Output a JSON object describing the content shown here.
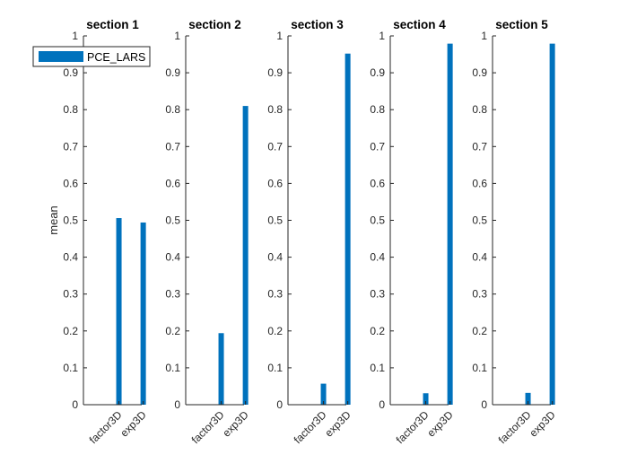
{
  "chart_data": [
    {
      "type": "bar",
      "title": "section 1",
      "ylabel": "mean",
      "categories": [
        "factor3D",
        "exp3D"
      ],
      "series": [
        {
          "name": "PCE_LARS",
          "values": [
            0.506,
            0.494
          ]
        }
      ],
      "ylim": [
        0,
        1
      ],
      "yticks": [
        "0",
        "0.1",
        "0.2",
        "0.3",
        "0.4",
        "0.5",
        "0.6",
        "0.7",
        "0.8",
        "0.9",
        "1"
      ],
      "legend": {
        "placement": "top-left",
        "entries": [
          "PCE_LARS"
        ]
      },
      "grid": false
    },
    {
      "type": "bar",
      "title": "section 2",
      "categories": [
        "factor3D",
        "exp3D"
      ],
      "series": [
        {
          "values": [
            0.194,
            0.81
          ]
        }
      ],
      "ylim": [
        0,
        1
      ],
      "yticks": [
        "0",
        "0.1",
        "0.2",
        "0.3",
        "0.4",
        "0.5",
        "0.6",
        "0.7",
        "0.8",
        "0.9",
        "1"
      ],
      "grid": false
    },
    {
      "type": "bar",
      "title": "section 3",
      "categories": [
        "factor3D",
        "exp3D"
      ],
      "series": [
        {
          "values": [
            0.057,
            0.952
          ]
        }
      ],
      "ylim": [
        0,
        1
      ],
      "yticks": [
        "0",
        "0.1",
        "0.2",
        "0.3",
        "0.4",
        "0.5",
        "0.6",
        "0.7",
        "0.8",
        "0.9",
        "1"
      ],
      "grid": false
    },
    {
      "type": "bar",
      "title": "section 4",
      "categories": [
        "factor3D",
        "exp3D"
      ],
      "series": [
        {
          "values": [
            0.031,
            0.979
          ]
        }
      ],
      "ylim": [
        0,
        1
      ],
      "yticks": [
        "0",
        "0.1",
        "0.2",
        "0.3",
        "0.4",
        "0.5",
        "0.6",
        "0.7",
        "0.8",
        "0.9",
        "1"
      ],
      "grid": false
    },
    {
      "type": "bar",
      "title": "section 5",
      "categories": [
        "factor3D",
        "exp3D"
      ],
      "series": [
        {
          "values": [
            0.032,
            0.979
          ]
        }
      ],
      "ylim": [
        0,
        1
      ],
      "yticks": [
        "0",
        "0.1",
        "0.2",
        "0.3",
        "0.4",
        "0.5",
        "0.6",
        "0.7",
        "0.8",
        "0.9",
        "1"
      ],
      "grid": false
    }
  ],
  "colors": {
    "bar": "#0072BD",
    "axis": "#262626"
  }
}
